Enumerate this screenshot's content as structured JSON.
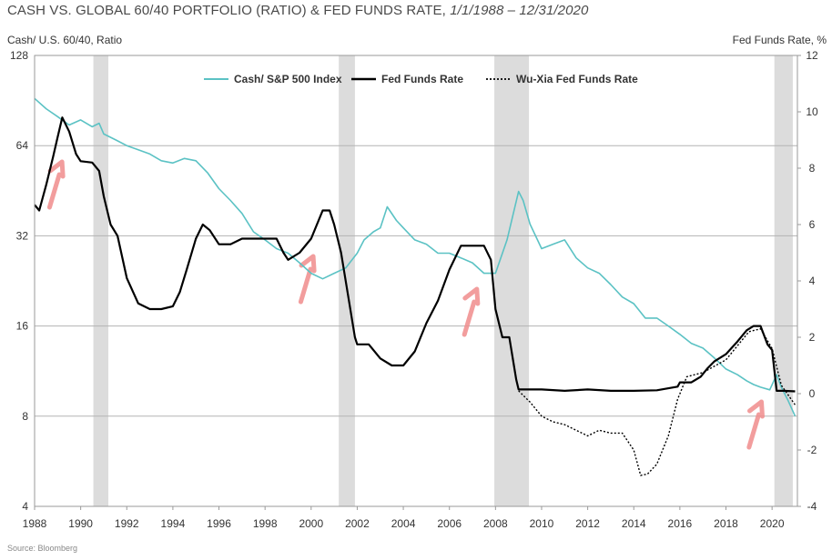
{
  "title": {
    "main": "CASH VS. GLOBAL 60/40 PORTFOLIO (RATIO) & FED FUNDS RATE,",
    "range": "1/1/1988 – 12/31/2020"
  },
  "source": "Source: Bloomberg",
  "chart_data": {
    "type": "line",
    "title": "CASH VS. GLOBAL 60/40 PORTFOLIO (RATIO) & FED FUNDS RATE, 1/1/1988 – 12/31/2020",
    "ylabel_left": "Cash/ U.S. 60/40, Ratio",
    "ylabel_right": "Fed Funds Rate, %",
    "xlim": [
      1988,
      2021.1
    ],
    "x_ticks": [
      "1988",
      "1990",
      "1992",
      "1994",
      "1996",
      "1998",
      "2000",
      "2002",
      "2004",
      "2006",
      "2008",
      "2010",
      "2012",
      "2014",
      "2016",
      "2018",
      "2020"
    ],
    "y_left": {
      "scale": "log2",
      "lim": [
        4,
        128
      ],
      "ticks": [
        "4",
        "8",
        "16",
        "32",
        "64",
        "128"
      ]
    },
    "y_right": {
      "scale": "linear",
      "lim": [
        -4,
        12
      ],
      "ticks": [
        "-4",
        "-2",
        "0",
        "2",
        "4",
        "6",
        "8",
        "10",
        "12"
      ]
    },
    "legend": {
      "placement": "top-center",
      "entries": [
        "Cash/ S&P 500 Index",
        "Fed Funds Rate",
        "Wu-Xia Fed Funds Rate"
      ]
    },
    "recessions": [
      [
        1990.55,
        1991.2
      ],
      [
        2001.2,
        2001.9
      ],
      [
        2007.95,
        2009.45
      ],
      [
        2020.1,
        2020.9
      ]
    ],
    "colors": {
      "cash_ratio": "#5bc2c4",
      "fed_funds": "#000000",
      "wu_xia": "#000000",
      "recession": "#dcdcdc",
      "arrows": "#f08c8c",
      "grid": "#b3b3b3"
    },
    "series": [
      {
        "name": "Cash/ S&P 500 Index",
        "axis": "left",
        "x": [
          1988.0,
          1988.5,
          1989.0,
          1989.5,
          1990.0,
          1990.5,
          1990.8,
          1991.0,
          1991.5,
          1992.0,
          1992.5,
          1993.0,
          1993.5,
          1994.0,
          1994.5,
          1995.0,
          1995.5,
          1996.0,
          1996.5,
          1997.0,
          1997.5,
          1998.0,
          1998.5,
          1999.0,
          1999.5,
          2000.0,
          2000.5,
          2001.0,
          2001.5,
          2002.0,
          2002.3,
          2002.7,
          2003.0,
          2003.3,
          2003.7,
          2004.0,
          2004.5,
          2005.0,
          2005.5,
          2006.0,
          2006.5,
          2007.0,
          2007.5,
          2008.0,
          2008.5,
          2009.0,
          2009.2,
          2009.5,
          2010.0,
          2010.5,
          2011.0,
          2011.5,
          2012.0,
          2012.5,
          2013.0,
          2013.5,
          2014.0,
          2014.5,
          2015.0,
          2015.5,
          2016.0,
          2016.5,
          2017.0,
          2017.5,
          2018.0,
          2018.5,
          2018.9,
          2019.2,
          2019.5,
          2019.9,
          2020.2,
          2020.4,
          2020.7,
          2021.0
        ],
        "values": [
          92,
          85,
          80,
          75,
          78,
          74,
          76,
          70,
          67,
          64,
          62,
          60,
          57,
          56,
          58,
          57,
          52,
          46,
          42,
          38,
          33,
          31,
          29,
          28,
          26,
          24,
          23,
          24,
          25,
          28,
          31,
          33,
          34,
          40,
          36,
          34,
          31,
          30,
          28,
          28,
          27,
          26,
          24,
          24,
          31,
          45,
          42,
          35,
          29,
          30,
          31,
          27,
          25,
          24,
          22,
          20,
          19,
          17,
          17,
          16,
          15,
          14,
          13.5,
          12.5,
          11.5,
          11,
          10.5,
          10.2,
          10,
          9.8,
          11,
          10,
          9,
          8
        ]
      },
      {
        "name": "Fed Funds Rate",
        "axis": "right",
        "x": [
          1988.0,
          1988.2,
          1988.5,
          1988.8,
          1989.0,
          1989.2,
          1989.5,
          1989.8,
          1990.0,
          1990.5,
          1990.8,
          1991.0,
          1991.3,
          1991.6,
          1992.0,
          1992.5,
          1993.0,
          1993.5,
          1994.0,
          1994.3,
          1994.6,
          1995.0,
          1995.3,
          1995.6,
          1996.0,
          1996.5,
          1997.0,
          1997.5,
          1998.0,
          1998.5,
          1998.8,
          1999.0,
          1999.5,
          2000.0,
          2000.5,
          2000.8,
          2001.0,
          2001.3,
          2001.6,
          2001.9,
          2002.0,
          2002.5,
          2003.0,
          2003.5,
          2004.0,
          2004.5,
          2005.0,
          2005.5,
          2006.0,
          2006.5,
          2007.0,
          2007.5,
          2007.8,
          2008.0,
          2008.3,
          2008.6,
          2008.9,
          2009.0,
          2010.0,
          2011.0,
          2012.0,
          2013.0,
          2014.0,
          2015.0,
          2015.9,
          2016.0,
          2016.5,
          2016.9,
          2017.2,
          2017.5,
          2018.0,
          2018.5,
          2018.9,
          2019.2,
          2019.5,
          2019.8,
          2020.0,
          2020.2,
          2020.5,
          2021.0
        ],
        "values": [
          6.7,
          6.5,
          7.4,
          8.4,
          9.1,
          9.8,
          9.3,
          8.5,
          8.25,
          8.2,
          7.9,
          7.0,
          6.0,
          5.6,
          4.1,
          3.2,
          3.0,
          3.0,
          3.1,
          3.6,
          4.4,
          5.5,
          6.0,
          5.8,
          5.3,
          5.3,
          5.5,
          5.5,
          5.5,
          5.5,
          5.0,
          4.75,
          5.0,
          5.5,
          6.5,
          6.5,
          6.0,
          5.0,
          3.5,
          2.0,
          1.75,
          1.75,
          1.25,
          1.0,
          1.0,
          1.5,
          2.5,
          3.3,
          4.4,
          5.25,
          5.25,
          5.25,
          4.75,
          3.0,
          2.0,
          2.0,
          0.5,
          0.15,
          0.15,
          0.1,
          0.15,
          0.1,
          0.1,
          0.12,
          0.25,
          0.4,
          0.4,
          0.6,
          0.9,
          1.15,
          1.4,
          1.85,
          2.25,
          2.4,
          2.4,
          1.75,
          1.55,
          0.1,
          0.1,
          0.08
        ]
      },
      {
        "name": "Wu-Xia Fed Funds Rate",
        "axis": "right",
        "x": [
          2009.0,
          2009.5,
          2010.0,
          2010.5,
          2011.0,
          2011.5,
          2012.0,
          2012.5,
          2013.0,
          2013.5,
          2014.0,
          2014.3,
          2014.6,
          2015.0,
          2015.5,
          2015.9,
          2016.3,
          2017.0,
          2018.0,
          2019.0,
          2019.5,
          2020.0,
          2020.4,
          2021.0
        ],
        "values": [
          0.1,
          -0.3,
          -0.8,
          -1.0,
          -1.1,
          -1.3,
          -1.5,
          -1.3,
          -1.4,
          -1.4,
          -2.0,
          -2.9,
          -2.85,
          -2.5,
          -1.5,
          -0.2,
          0.6,
          0.75,
          1.2,
          2.2,
          2.3,
          1.6,
          0.3,
          -0.4
        ]
      }
    ]
  }
}
